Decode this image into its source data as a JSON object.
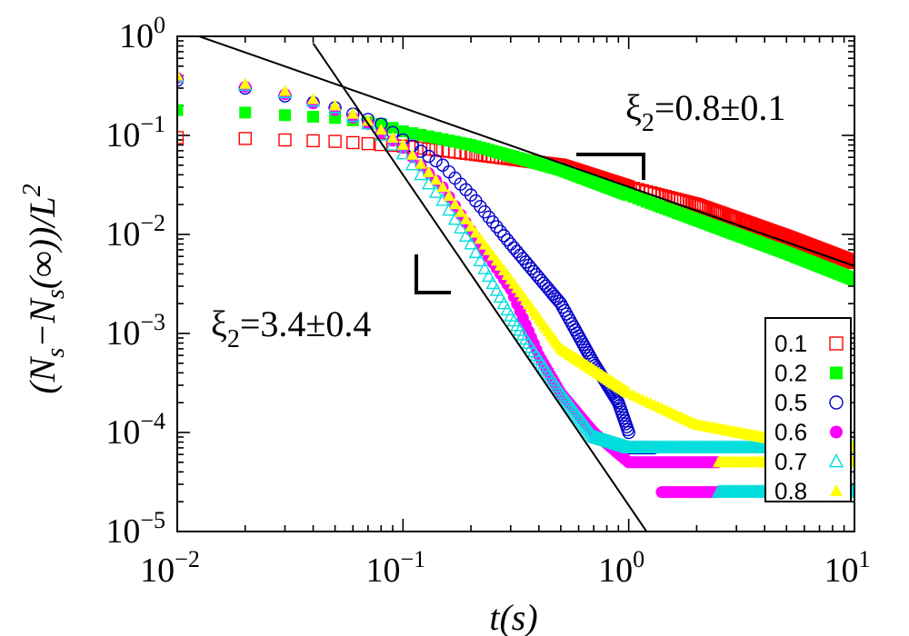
{
  "chart_data": {
    "type": "scatter",
    "xscale": "log",
    "yscale": "log",
    "xlim": [
      0.01,
      10
    ],
    "ylim": [
      1e-05,
      1
    ],
    "xlabel": "t(s)",
    "ylabel": "(N_s−N_s(∞))/L^2",
    "x_ticks": [
      {
        "base": "10",
        "exp": "−2",
        "value": 0.01
      },
      {
        "base": "10",
        "exp": "−1",
        "value": 0.1
      },
      {
        "base": "10",
        "exp": "0",
        "value": 1
      },
      {
        "base": "10",
        "exp": "1",
        "value": 10
      }
    ],
    "y_ticks": [
      {
        "base": "10",
        "exp": "0",
        "value": 1
      },
      {
        "base": "10",
        "exp": "−1",
        "value": 0.1
      },
      {
        "base": "10",
        "exp": "−2",
        "value": 0.01
      },
      {
        "base": "10",
        "exp": "−3",
        "value": 0.001
      },
      {
        "base": "10",
        "exp": "−4",
        "value": 0.0001
      },
      {
        "base": "10",
        "exp": "−5",
        "value": 1e-05
      }
    ],
    "legend_position": "bottom-right",
    "annotations": [
      {
        "symbol": "ξ",
        "sub": "2",
        "text": "=0.8±0.1"
      },
      {
        "symbol": "ξ",
        "sub": "2",
        "text": "=3.4±0.4"
      }
    ],
    "fit_lines": [
      {
        "slope_exponent": -0.8,
        "points": [
          [
            0.0125,
            1.0
          ],
          [
            10,
            0.0048
          ]
        ]
      },
      {
        "slope_exponent": -3.4,
        "points": [
          [
            0.04,
            0.85
          ],
          [
            1.2,
            1e-05
          ]
        ]
      }
    ],
    "series": [
      {
        "name": "0.1",
        "color": "#ff0000",
        "marker": "square-open",
        "anchors": [
          [
            0.01,
            0.095
          ],
          [
            0.02,
            0.093
          ],
          [
            0.03,
            0.09
          ],
          [
            0.05,
            0.087
          ],
          [
            0.1,
            0.078
          ],
          [
            0.2,
            0.065
          ],
          [
            0.5,
            0.05
          ],
          [
            1,
            0.03
          ],
          [
            2,
            0.02
          ],
          [
            5,
            0.0095
          ],
          [
            10,
            0.0052
          ]
        ]
      },
      {
        "name": "0.2",
        "color": "#00ff00",
        "marker": "square-filled",
        "anchors": [
          [
            0.01,
            0.18
          ],
          [
            0.02,
            0.17
          ],
          [
            0.03,
            0.16
          ],
          [
            0.05,
            0.15
          ],
          [
            0.08,
            0.13
          ],
          [
            0.1,
            0.11
          ],
          [
            0.2,
            0.08
          ],
          [
            0.5,
            0.045
          ],
          [
            1,
            0.025
          ],
          [
            2,
            0.014
          ],
          [
            5,
            0.0065
          ],
          [
            10,
            0.0035
          ]
        ]
      },
      {
        "name": "0.5",
        "color": "#0000cc",
        "marker": "circle-open",
        "anchors": [
          [
            0.01,
            0.36
          ],
          [
            0.02,
            0.3
          ],
          [
            0.03,
            0.25
          ],
          [
            0.05,
            0.19
          ],
          [
            0.08,
            0.13
          ],
          [
            0.1,
            0.09
          ],
          [
            0.15,
            0.05
          ],
          [
            0.2,
            0.025
          ],
          [
            0.3,
            0.008
          ],
          [
            0.5,
            0.002
          ],
          [
            0.7,
            0.0005
          ],
          [
            0.9,
            0.0002
          ],
          [
            1,
            0.0001
          ]
        ]
      },
      {
        "name": "0.6",
        "color": "#ff00ff",
        "marker": "circle-filled",
        "anchors": [
          [
            0.01,
            0.38
          ],
          [
            0.02,
            0.31
          ],
          [
            0.03,
            0.26
          ],
          [
            0.05,
            0.18
          ],
          [
            0.07,
            0.13
          ],
          [
            0.1,
            0.075
          ],
          [
            0.15,
            0.03
          ],
          [
            0.2,
            0.011
          ],
          [
            0.3,
            0.0028
          ],
          [
            0.4,
            0.0006
          ],
          [
            0.5,
            0.00025
          ],
          [
            0.7,
            0.0001
          ],
          [
            1,
            5e-05
          ]
        ]
      },
      {
        "name": "0.7",
        "color": "#00dddd",
        "marker": "triangle-open",
        "anchors": [
          [
            0.01,
            0.39
          ],
          [
            0.02,
            0.32
          ],
          [
            0.03,
            0.27
          ],
          [
            0.05,
            0.19
          ],
          [
            0.07,
            0.13
          ],
          [
            0.1,
            0.065
          ],
          [
            0.15,
            0.022
          ],
          [
            0.2,
            0.008
          ],
          [
            0.3,
            0.0015
          ],
          [
            0.5,
            0.00025
          ],
          [
            0.7,
            9e-05
          ],
          [
            1,
            7e-05
          ]
        ]
      },
      {
        "name": "0.8",
        "color": "#ffff00",
        "marker": "triangle-filled",
        "anchors": [
          [
            0.01,
            0.4
          ],
          [
            0.02,
            0.33
          ],
          [
            0.03,
            0.28
          ],
          [
            0.05,
            0.2
          ],
          [
            0.07,
            0.14
          ],
          [
            0.1,
            0.08
          ],
          [
            0.15,
            0.03
          ],
          [
            0.2,
            0.012
          ],
          [
            0.3,
            0.0035
          ],
          [
            0.5,
            0.0007
          ],
          [
            1,
            0.00025
          ],
          [
            2,
            0.00012
          ],
          [
            5,
            8e-05
          ],
          [
            10,
            7e-05
          ]
        ]
      }
    ],
    "tail_plateaus": [
      {
        "series": "0.6",
        "x_start": 1.0,
        "x_end": 2.5,
        "y": 5e-05
      },
      {
        "series": "0.6",
        "x_start": 1.4,
        "x_end": 2.5,
        "y": 2.5e-05
      },
      {
        "series": "0.7",
        "x_start": 1.0,
        "x_end": 10,
        "y": 7e-05
      },
      {
        "series": "0.7",
        "x_start": 2.5,
        "x_end": 10,
        "y": 2.5e-05
      },
      {
        "series": "0.5",
        "x_start": 1.0,
        "x_end": 1.3,
        "y": 7e-05
      },
      {
        "series": "0.8",
        "x_start": 2.5,
        "x_end": 10,
        "y": 5e-05
      }
    ]
  }
}
